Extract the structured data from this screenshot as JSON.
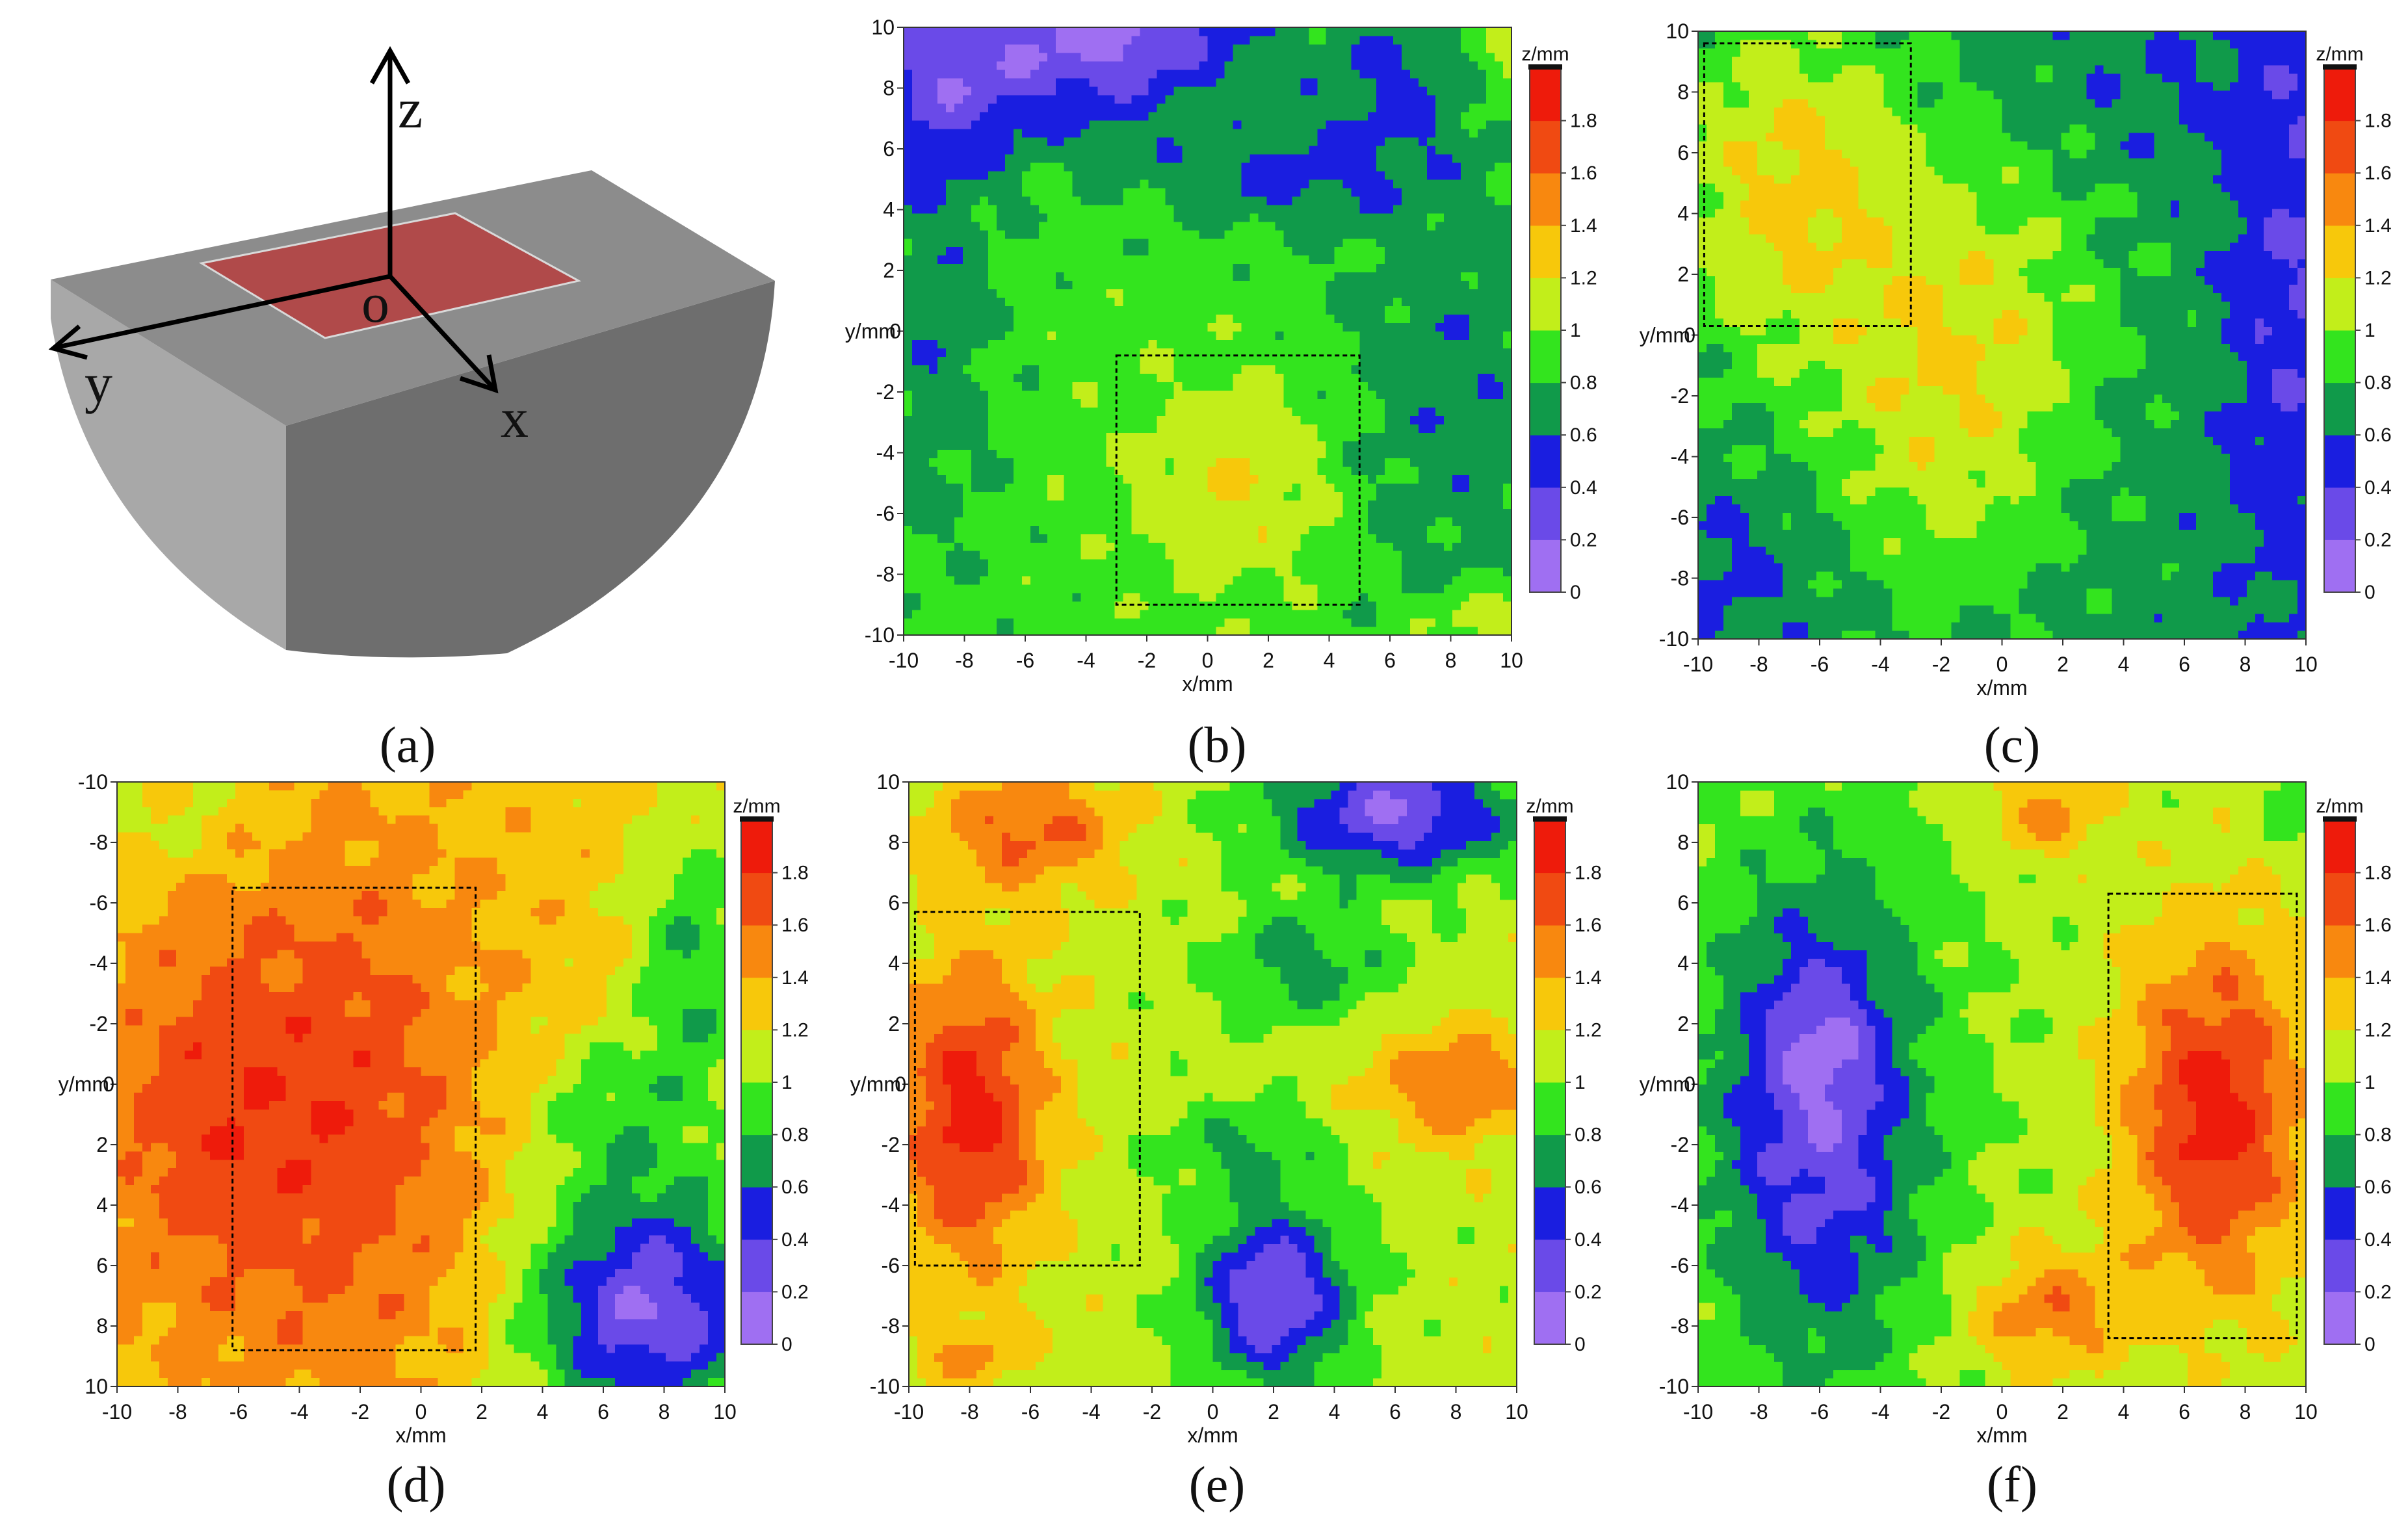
{
  "panels": {
    "a": {
      "label": "(a)",
      "axis_labels": {
        "z": "z",
        "y": "y",
        "x": "x",
        "origin": "o"
      },
      "colors": {
        "block_top": "#8c8c8c",
        "block_front": "#6e6e6e",
        "block_left": "#a8a8a8",
        "region": "#b04a4a"
      }
    },
    "b": {
      "label": "(b)"
    },
    "c": {
      "label": "(c)"
    },
    "d": {
      "label": "(d)"
    },
    "e": {
      "label": "(e)"
    },
    "f": {
      "label": "(f)"
    }
  },
  "colorbar": {
    "title": "z/mm",
    "ticks": [
      "1.8",
      "1.6",
      "1.4",
      "1.2",
      "1",
      "0.8",
      "0.6",
      "0.4",
      "0.2",
      "0"
    ],
    "bands": [
      {
        "from": 0.0,
        "to": 0.2,
        "color": "#9f6ff2"
      },
      {
        "from": 0.2,
        "to": 0.4,
        "color": "#6a4ae8"
      },
      {
        "from": 0.4,
        "to": 0.6,
        "color": "#1a1ee0"
      },
      {
        "from": 0.6,
        "to": 0.8,
        "color": "#109a4a"
      },
      {
        "from": 0.8,
        "to": 1.0,
        "color": "#33e41e"
      },
      {
        "from": 1.0,
        "to": 1.2,
        "color": "#c2ee1a"
      },
      {
        "from": 1.2,
        "to": 1.4,
        "color": "#f7c80b"
      },
      {
        "from": 1.4,
        "to": 1.6,
        "color": "#f8880f"
      },
      {
        "from": 1.6,
        "to": 1.8,
        "color": "#f04a12"
      },
      {
        "from": 1.8,
        "to": 2.0,
        "color": "#ee1b0b"
      }
    ]
  },
  "chart_data": [
    {
      "panel": "b",
      "type": "heatmap",
      "xlabel": "x/mm",
      "ylabel": "y/mm",
      "zlabel": "z/mm",
      "xlim": [
        -10,
        10
      ],
      "ylim": [
        -10,
        10
      ],
      "y_direction": "up",
      "x_ticks": [
        "-10",
        "-8",
        "-6",
        "-4",
        "-2",
        "0",
        "2",
        "4",
        "6",
        "8",
        "10"
      ],
      "y_ticks": [
        "10",
        "8",
        "6",
        "4",
        "2",
        "0",
        "-2",
        "-4",
        "-6",
        "-8",
        "-10"
      ],
      "zlim": [
        0,
        2
      ],
      "base": 0.9,
      "blobs": [
        {
          "x": -4,
          "y": 9.5,
          "z": -0.6,
          "rx": 5,
          "ry": 3
        },
        {
          "x": -2,
          "y": 10,
          "z": -0.25,
          "rx": 3,
          "ry": 1.5
        },
        {
          "x": 6,
          "y": 8,
          "z": -0.3,
          "rx": 3,
          "ry": 3
        },
        {
          "x": 2,
          "y": 5,
          "z": -0.3,
          "rx": 4,
          "ry": 1.6
        },
        {
          "x": 8,
          "y": -2,
          "z": -0.25,
          "rx": 4,
          "ry": 8
        },
        {
          "x": -9,
          "y": 0,
          "z": -0.25,
          "rx": 2,
          "ry": 7
        },
        {
          "x": -9,
          "y": 8,
          "z": -0.4,
          "rx": 3,
          "ry": 3
        },
        {
          "x": 1,
          "y": -5,
          "z": 0.3,
          "rx": 3.5,
          "ry": 3.5
        },
        {
          "x": 9,
          "y": -9.5,
          "z": 0.3,
          "rx": 2,
          "ry": 1
        },
        {
          "x": 10,
          "y": 9,
          "z": 0.25,
          "rx": 1.5,
          "ry": 1.5
        }
      ],
      "dashed_box": {
        "x": [
          -3,
          5
        ],
        "y": [
          -9,
          -0.8
        ]
      }
    },
    {
      "panel": "c",
      "type": "heatmap",
      "xlabel": "x/mm",
      "ylabel": "y/mm",
      "zlabel": "z/mm",
      "xlim": [
        -10,
        10
      ],
      "ylim": [
        -10,
        10
      ],
      "y_direction": "up",
      "x_ticks": [
        "-10",
        "-8",
        "-6",
        "-4",
        "-2",
        "0",
        "2",
        "4",
        "6",
        "8",
        "10"
      ],
      "y_ticks": [
        "10",
        "8",
        "6",
        "4",
        "2",
        "0",
        "-2",
        "-4",
        "-6",
        "-8",
        "-10"
      ],
      "zlim": [
        0,
        2
      ],
      "base": 0.7,
      "blobs": [
        {
          "x": -7,
          "y": 5,
          "z": 0.55,
          "rx": 4,
          "ry": 6
        },
        {
          "x": -2,
          "y": -3,
          "z": 0.4,
          "rx": 4,
          "ry": 6
        },
        {
          "x": 0,
          "y": 2,
          "z": 0.25,
          "rx": 4,
          "ry": 5
        },
        {
          "x": 9.5,
          "y": 2,
          "z": -0.3,
          "rx": 2,
          "ry": 12
        },
        {
          "x": 5,
          "y": 8,
          "z": -0.1,
          "rx": 4,
          "ry": 3
        },
        {
          "x": -9,
          "y": -8,
          "z": -0.15,
          "rx": 3,
          "ry": 3
        }
      ],
      "dashed_box": {
        "x": [
          -9.8,
          -3.0
        ],
        "y": [
          0.3,
          9.6
        ]
      }
    },
    {
      "panel": "d",
      "type": "heatmap",
      "xlabel": "x/mm",
      "ylabel": "y/mm",
      "zlabel": "z/mm",
      "xlim": [
        -10,
        10
      ],
      "ylim": [
        -10,
        10
      ],
      "y_direction": "down",
      "x_ticks": [
        "-10",
        "-8",
        "-6",
        "-4",
        "-2",
        "0",
        "2",
        "4",
        "6",
        "8",
        "10"
      ],
      "y_ticks": [
        "-10",
        "-8",
        "-6",
        "-4",
        "-2",
        "0",
        "2",
        "4",
        "6",
        "8",
        "10"
      ],
      "zlim": [
        0,
        2
      ],
      "base": 1.3,
      "blobs": [
        {
          "x": -3,
          "y": 1,
          "z": 0.45,
          "rx": 5,
          "ry": 9
        },
        {
          "x": -8,
          "y": 1,
          "z": 0.25,
          "rx": 3,
          "ry": 6
        },
        {
          "x": 7.5,
          "y": 7.5,
          "z": -1.1,
          "rx": 4,
          "ry": 4
        },
        {
          "x": 9,
          "y": -4,
          "z": -0.5,
          "rx": 2,
          "ry": 5
        },
        {
          "x": 6,
          "y": 1,
          "z": -0.35,
          "rx": 3,
          "ry": 3
        },
        {
          "x": -8,
          "y": -9,
          "z": -0.2,
          "rx": 3,
          "ry": 2
        }
      ],
      "dashed_box": {
        "x": [
          -6.2,
          1.8
        ],
        "y": [
          -6.5,
          8.8
        ]
      }
    },
    {
      "panel": "e",
      "type": "heatmap",
      "xlabel": "x/mm",
      "ylabel": "y/mm",
      "zlabel": "z/mm",
      "xlim": [
        -10,
        10
      ],
      "ylim": [
        -10,
        10
      ],
      "y_direction": "up",
      "x_ticks": [
        "-10",
        "-8",
        "-6",
        "-4",
        "-2",
        "0",
        "2",
        "4",
        "6",
        "8",
        "10"
      ],
      "y_ticks": [
        "10",
        "8",
        "6",
        "4",
        "2",
        "0",
        "-2",
        "-4",
        "-6",
        "-8",
        "-10"
      ],
      "zlim": [
        0,
        2
      ],
      "base": 1.1,
      "blobs": [
        {
          "x": -8,
          "y": -1,
          "z": 0.8,
          "rx": 2.5,
          "ry": 5
        },
        {
          "x": -6,
          "y": 8.5,
          "z": 0.55,
          "rx": 3,
          "ry": 2
        },
        {
          "x": 6,
          "y": 9,
          "z": -0.9,
          "rx": 4,
          "ry": 2
        },
        {
          "x": 2,
          "y": -7,
          "z": -0.9,
          "rx": 2.5,
          "ry": 3
        },
        {
          "x": 3,
          "y": 4,
          "z": -0.4,
          "rx": 3,
          "ry": 2
        },
        {
          "x": 8,
          "y": 0,
          "z": 0.45,
          "rx": 3,
          "ry": 2
        },
        {
          "x": 1,
          "y": -2,
          "z": -0.3,
          "rx": 3,
          "ry": 1.5
        },
        {
          "x": -8,
          "y": -9,
          "z": 0.3,
          "rx": 2,
          "ry": 1
        }
      ],
      "dashed_box": {
        "x": [
          -9.8,
          -2.4
        ],
        "y": [
          -6.0,
          5.7
        ]
      }
    },
    {
      "panel": "f",
      "type": "heatmap",
      "xlabel": "x/mm",
      "ylabel": "y/mm",
      "zlabel": "z/mm",
      "xlim": [
        -10,
        10
      ],
      "ylim": [
        -10,
        10
      ],
      "y_direction": "up",
      "x_ticks": [
        "-10",
        "-8",
        "-6",
        "-4",
        "-2",
        "0",
        "2",
        "4",
        "6",
        "8",
        "10"
      ],
      "y_ticks": [
        "10",
        "8",
        "6",
        "4",
        "2",
        "0",
        "-2",
        "-4",
        "-6",
        "-8",
        "-10"
      ],
      "zlim": [
        0,
        2
      ],
      "base": 1.05,
      "blobs": [
        {
          "x": 7,
          "y": -1,
          "z": 0.85,
          "rx": 3,
          "ry": 6
        },
        {
          "x": -6,
          "y": -1,
          "z": -0.8,
          "rx": 3.5,
          "ry": 8
        },
        {
          "x": -6,
          "y": 1.5,
          "z": -0.25,
          "rx": 1.5,
          "ry": 2
        },
        {
          "x": 1.5,
          "y": -7.5,
          "z": 0.5,
          "rx": 2.5,
          "ry": 2
        },
        {
          "x": 1.5,
          "y": 9,
          "z": 0.4,
          "rx": 2,
          "ry": 1.5
        },
        {
          "x": 10,
          "y": 9.5,
          "z": -0.3,
          "rx": 1.2,
          "ry": 1
        }
      ],
      "dashed_box": {
        "x": [
          3.5,
          9.7
        ],
        "y": [
          -8.4,
          6.3
        ]
      }
    }
  ]
}
